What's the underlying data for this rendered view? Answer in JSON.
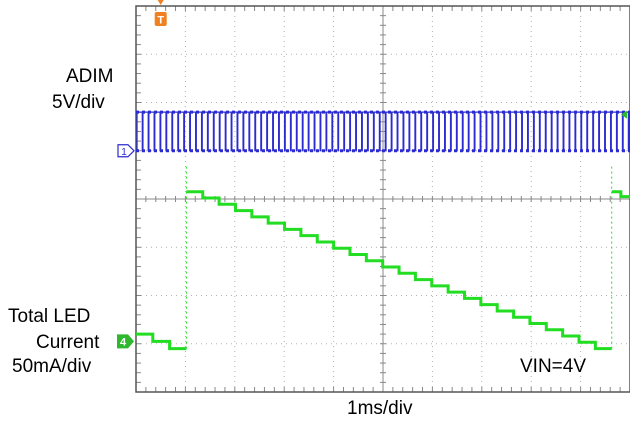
{
  "labels": {
    "ch1_name": "ADIM",
    "ch1_scale": "5V/div",
    "ch1_marker": "1",
    "ch4_name_line1": "Total LED",
    "ch4_name_line2": "Current",
    "ch4_scale": "50mA/div",
    "ch4_marker": "4",
    "trigger_marker": "T",
    "annotation": "VIN=4V",
    "time_scale": "1ms/div"
  },
  "colors": {
    "ch1": "#2b2bd0",
    "ch4": "#22dd22",
    "ch4_marker": "#2db82d",
    "trigger": "#f08020",
    "grid": "#b0b0b0",
    "frame": "#555555"
  },
  "chart_data": {
    "type": "line",
    "x_divisions": 10,
    "y_divisions": 8,
    "x_unit": "ms",
    "grid": true,
    "series": [
      {
        "name": "ADIM",
        "kind": "pwm_square",
        "low_div": 1.0,
        "high_div": 1.8,
        "period_ms": 0.12,
        "duty": 0.9
      },
      {
        "name": "Total LED Current",
        "kind": "staircase_ramp",
        "points": [
          {
            "t_ms": 0.0,
            "div": -2.8
          },
          {
            "t_ms": 1.02,
            "div": -3.1
          },
          {
            "t_ms": 1.02,
            "div": 0.15
          },
          {
            "t_ms": 9.63,
            "div": -3.1
          },
          {
            "t_ms": 9.63,
            "div": 0.15
          },
          {
            "t_ms": 10.0,
            "div": 0.05
          }
        ],
        "steps": 26
      }
    ]
  }
}
